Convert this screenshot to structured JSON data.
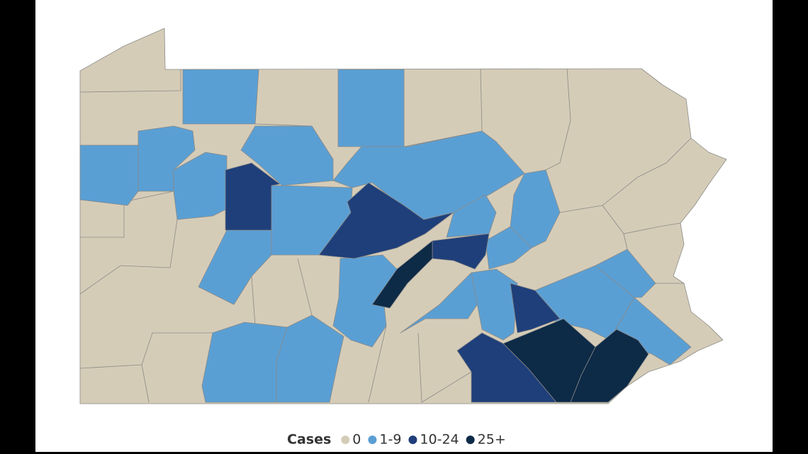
{
  "legend": {
    "title": "Cases",
    "items": [
      {
        "label": "0",
        "color": "#d5ccb8"
      },
      {
        "label": "1-9",
        "color": "#5a9fd4"
      },
      {
        "label": "10-24",
        "color": "#1f3f7a"
      },
      {
        "label": "25+",
        "color": "#0d2a47"
      }
    ]
  }
}
